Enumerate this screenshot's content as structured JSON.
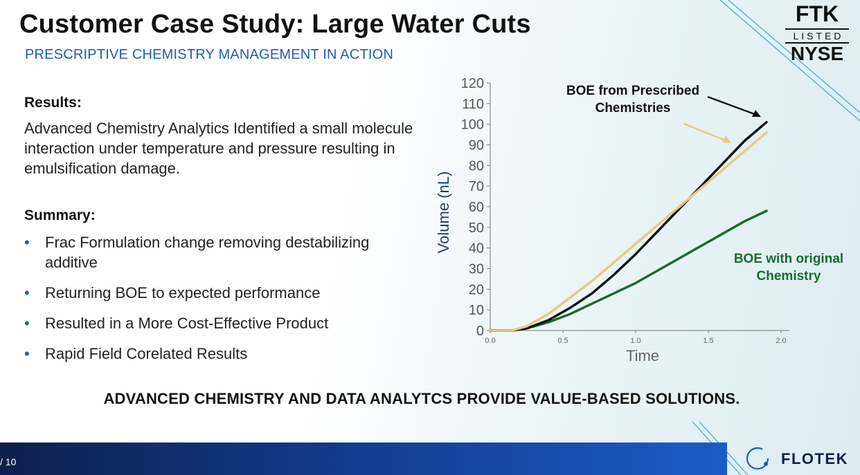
{
  "slide": {
    "title": "Customer Case Study: Large Water Cuts",
    "subtitle": "PRESCRIPTIVE CHEMISTRY MANAGEMENT IN ACTION",
    "page": "/ 10",
    "tagline": "ADVANCED CHEMISTRY AND DATA ANALYTCS PROVIDE VALUE-BASED SOLUTIONS."
  },
  "logo": {
    "ftk": "FTK",
    "listed": "LISTED",
    "nyse": "NYSE"
  },
  "brand": {
    "name": "FLOTEK"
  },
  "results": {
    "heading": "Results:",
    "body": "Advanced Chemistry Analytics Identified a small molecule interaction under temperature and pressure resulting in emulsification damage."
  },
  "summary": {
    "heading": "Summary:",
    "bullets": [
      "Frac Formulation change removing destabilizing additive",
      "Returning BOE to expected performance",
      "Resulted in a More Cost-Effective Product",
      "Rapid Field Corelated Results"
    ]
  },
  "colors": {
    "accent": "#1f5ea8",
    "prescribed_black": "#111111",
    "prescribed_gold": "#e6c982",
    "original_green": "#1a6b2e"
  },
  "chart_data": {
    "type": "line",
    "xlabel": "Time",
    "ylabel": "Volume (nL)",
    "xlim": [
      0,
      2
    ],
    "ylim": [
      0,
      120
    ],
    "xticks": [
      "0.0",
      "0.5",
      "1.0",
      "1.5",
      "2.0"
    ],
    "yticks": [
      "0",
      "10",
      "20",
      "30",
      "40",
      "50",
      "60",
      "70",
      "80",
      "90",
      "100",
      "110",
      "120"
    ],
    "series": [
      {
        "name": "BOE from Prescribed Chemistries (black)",
        "color": "#111111",
        "x": [
          0,
          0.15,
          0.25,
          0.4,
          0.55,
          0.7,
          0.85,
          1.0,
          1.15,
          1.3,
          1.45,
          1.6,
          1.75,
          1.9
        ],
        "y": [
          0,
          0,
          1,
          5,
          11,
          18,
          27,
          37,
          48,
          59,
          70,
          81,
          92,
          101
        ]
      },
      {
        "name": "BOE from Prescribed Chemistries (gold)",
        "color": "#e6c982",
        "x": [
          0,
          0.15,
          0.25,
          0.4,
          0.55,
          0.7,
          0.85,
          1.0,
          1.15,
          1.3,
          1.45,
          1.6,
          1.75,
          1.9
        ],
        "y": [
          0,
          0,
          2,
          8,
          16,
          24,
          33,
          42,
          51,
          60,
          69,
          78,
          87,
          96
        ]
      },
      {
        "name": "BOE with original Chemistry",
        "color": "#1a6b2e",
        "x": [
          0,
          0.15,
          0.25,
          0.4,
          0.55,
          0.7,
          0.85,
          1.0,
          1.15,
          1.3,
          1.45,
          1.6,
          1.75,
          1.9
        ],
        "y": [
          0,
          0,
          1,
          4,
          8,
          13,
          18,
          23,
          29,
          35,
          41,
          47,
          53,
          58
        ]
      }
    ],
    "annotations": [
      {
        "text": "BOE from Prescribed",
        "text2": "Chemistries",
        "color": "#111111"
      },
      {
        "text": "BOE with original",
        "text2": "Chemistry",
        "color": "#1a6b2e"
      }
    ]
  }
}
